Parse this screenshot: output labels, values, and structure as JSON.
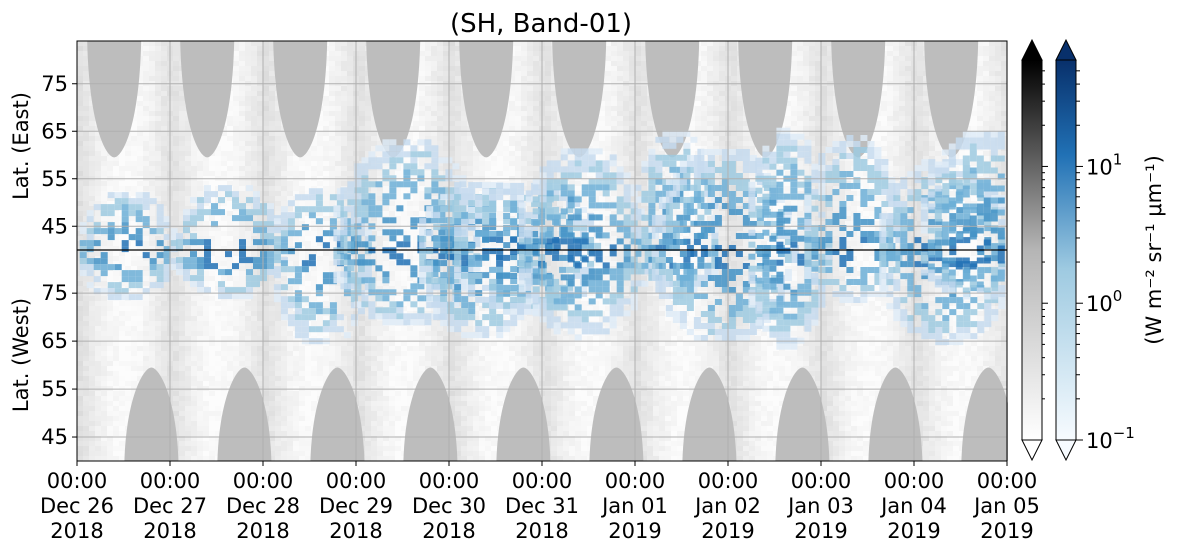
{
  "chart_data": {
    "type": "heatmap",
    "title": "(SH, Band-01)",
    "x_ticks": [
      {
        "time": "00:00",
        "date": "Dec 26",
        "year": "2018"
      },
      {
        "time": "00:00",
        "date": "Dec 27",
        "year": "2018"
      },
      {
        "time": "00:00",
        "date": "Dec 28",
        "year": "2018"
      },
      {
        "time": "00:00",
        "date": "Dec 29",
        "year": "2018"
      },
      {
        "time": "00:00",
        "date": "Dec 30",
        "year": "2018"
      },
      {
        "time": "00:00",
        "date": "Dec 31",
        "year": "2018"
      },
      {
        "time": "00:00",
        "date": "Jan 01",
        "year": "2019"
      },
      {
        "time": "00:00",
        "date": "Jan 02",
        "year": "2019"
      },
      {
        "time": "00:00",
        "date": "Jan 03",
        "year": "2019"
      },
      {
        "time": "00:00",
        "date": "Jan 04",
        "year": "2019"
      },
      {
        "time": "00:00",
        "date": "Jan 05",
        "year": "2019"
      }
    ],
    "y_east": {
      "label": "Lat. (East)",
      "ticks": [
        "45",
        "55",
        "65",
        "75"
      ],
      "range": [
        40,
        84
      ]
    },
    "y_west": {
      "label": "Lat. (West)",
      "ticks": [
        "75",
        "65",
        "55",
        "45"
      ],
      "range": [
        84,
        40
      ]
    },
    "grid": true,
    "colorbars": [
      {
        "name": "gray",
        "scale": "log",
        "range": [
          0.1,
          60
        ],
        "extend": "both"
      },
      {
        "name": "blues",
        "scale": "log",
        "range": [
          0.1,
          60
        ],
        "extend": "both",
        "tick_labels": [
          {
            "base": "10",
            "exp": "1",
            "value": 10
          },
          {
            "base": "10",
            "exp": "0",
            "value": 1
          },
          {
            "base": "10",
            "exp": "−1",
            "value": 0.1
          }
        ]
      }
    ],
    "colorbar_label": "(W m⁻² sr⁻¹ μm⁻¹)",
    "dark_region_peaks_east_days": [
      0.4,
      1.4,
      2.4,
      3.4,
      4.4,
      5.4,
      6.4,
      7.4,
      8.4,
      9.4
    ],
    "dark_region_peaks_west_days": [
      0.8,
      1.8,
      2.8,
      3.8,
      4.8,
      5.8,
      6.8,
      7.8,
      8.8,
      9.8
    ],
    "activity_centers_days": [
      0.5,
      1.6,
      2.6,
      3.5,
      4.3,
      4.8,
      5.4,
      6.4,
      6.9,
      7.6,
      8.3,
      9.3,
      9.7
    ]
  }
}
